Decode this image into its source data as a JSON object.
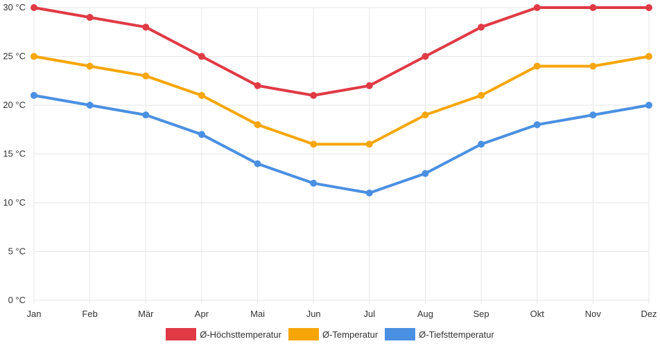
{
  "chart_data": {
    "type": "line",
    "categories": [
      "Jan",
      "Feb",
      "Mär",
      "Apr",
      "Mai",
      "Jun",
      "Jul",
      "Aug",
      "Sep",
      "Okt",
      "Nov",
      "Dez"
    ],
    "series": [
      {
        "name": "Ø-Höchsttemperatur",
        "color": "#e03a45",
        "values": [
          30,
          29,
          28,
          25,
          22,
          21,
          22,
          25,
          28,
          30,
          30,
          30
        ]
      },
      {
        "name": "Ø-Temperatur",
        "color": "#f6a609",
        "values": [
          25,
          24,
          23,
          21,
          18,
          16,
          16,
          19,
          21,
          24,
          24,
          25
        ]
      },
      {
        "name": "Ø-Tiefsttemperatur",
        "color": "#4a90e2",
        "values": [
          21,
          20,
          19,
          17,
          14,
          12,
          11,
          13,
          16,
          18,
          19,
          20
        ]
      }
    ],
    "y_ticks": [
      "0 °C",
      "5 °C",
      "10 °C",
      "15 °C",
      "20 °C",
      "25 °C",
      "30 °C"
    ],
    "ylim": [
      0,
      30
    ],
    "title": "",
    "xlabel": "",
    "ylabel": "",
    "grid": true,
    "legend_position": "bottom"
  }
}
